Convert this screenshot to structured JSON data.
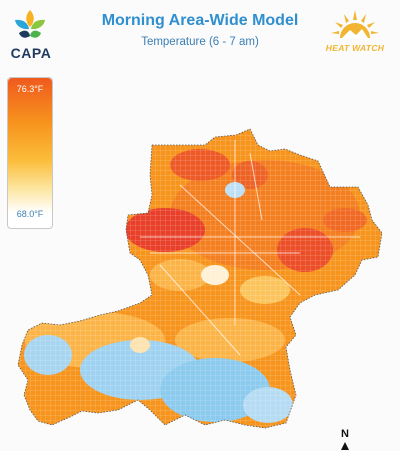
{
  "header": {
    "title": "Morning Area-Wide Model",
    "subtitle": "Temperature (6 - 7 am)"
  },
  "logos": {
    "left_text": "CAPA",
    "right_text": "HEAT WATCH"
  },
  "legend": {
    "max_label": "76.3°F",
    "min_label": "68.0°F"
  },
  "map": {
    "north_label": "N"
  },
  "colors": {
    "hot": "#e8402a",
    "warm": "#f7941d",
    "mild": "#fcc45c",
    "cool": "#9fd2f0",
    "cold": "#6fbbe8",
    "title": "#2f8fcf"
  }
}
